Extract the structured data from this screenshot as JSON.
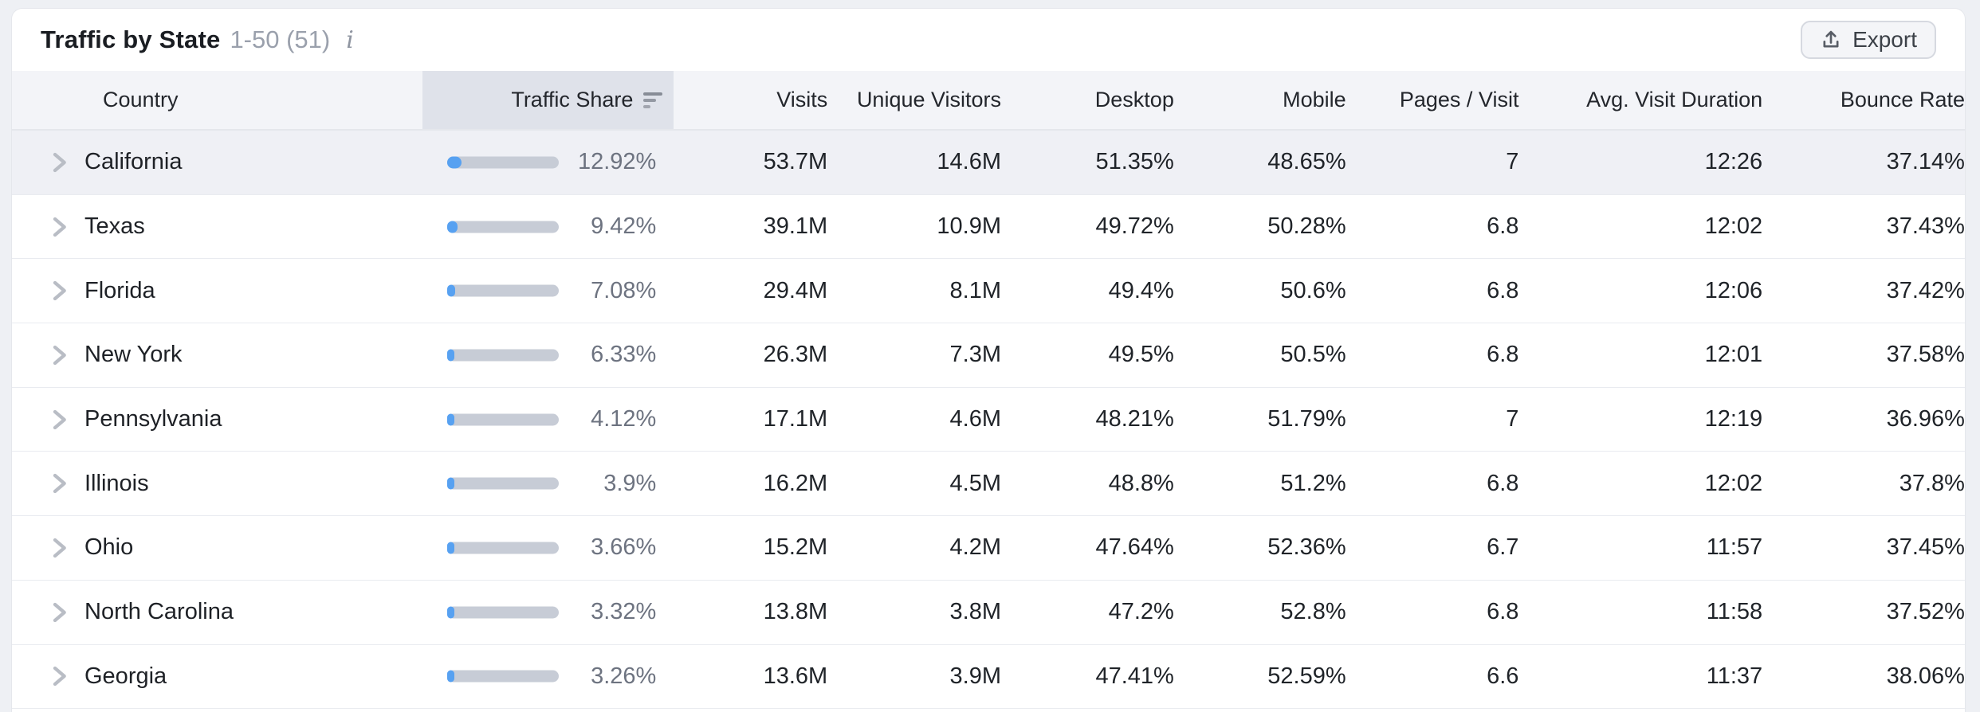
{
  "header": {
    "title": "Traffic by State",
    "range": "1-50 (51)",
    "info_glyph": "i",
    "export_label": "Export"
  },
  "icons": {
    "info": "info-icon",
    "export": "upload-icon",
    "sort": "sort-descending-icon",
    "row_expand": "chevron-right-icon"
  },
  "colors": {
    "page_bg": "#eef0f4",
    "card_bg": "#ffffff",
    "thead_bg": "#f3f4f8",
    "sorted_column_bg": "#dfe2ea",
    "row_highlight_bg": "#eff0f5",
    "bar_track": "#c7ccd6",
    "bar_fill_blue": "#57a1f1",
    "muted_text": "#9aa0ac",
    "pct_text": "#6d7380",
    "dark_text": "#1f2328"
  },
  "table": {
    "columns": [
      {
        "label": "Country",
        "align": "left",
        "sorted": false
      },
      {
        "label": "Traffic Share",
        "align": "right",
        "sorted": true
      },
      {
        "label": "Visits",
        "align": "right",
        "sorted": false
      },
      {
        "label": "Unique Visitors",
        "align": "right",
        "sorted": false
      },
      {
        "label": "Desktop",
        "align": "right",
        "sorted": false
      },
      {
        "label": "Mobile",
        "align": "right",
        "sorted": false
      },
      {
        "label": "Pages / Visit",
        "align": "right",
        "sorted": false
      },
      {
        "label": "Avg. Visit Duration",
        "align": "right",
        "sorted": false
      },
      {
        "label": "Bounce Rate",
        "align": "right",
        "sorted": false
      }
    ],
    "rows": [
      {
        "state": "California",
        "traffic_share": "12.92%",
        "share_pct": 12.92,
        "visits": "53.7M",
        "unique_visitors": "14.6M",
        "desktop": "51.35%",
        "mobile": "48.65%",
        "pages_per_visit": "7",
        "avg_visit_duration": "12:26",
        "bounce_rate": "37.14%",
        "highlighted": true
      },
      {
        "state": "Texas",
        "traffic_share": "9.42%",
        "share_pct": 9.42,
        "visits": "39.1M",
        "unique_visitors": "10.9M",
        "desktop": "49.72%",
        "mobile": "50.28%",
        "pages_per_visit": "6.8",
        "avg_visit_duration": "12:02",
        "bounce_rate": "37.43%",
        "highlighted": false
      },
      {
        "state": "Florida",
        "traffic_share": "7.08%",
        "share_pct": 7.08,
        "visits": "29.4M",
        "unique_visitors": "8.1M",
        "desktop": "49.4%",
        "mobile": "50.6%",
        "pages_per_visit": "6.8",
        "avg_visit_duration": "12:06",
        "bounce_rate": "37.42%",
        "highlighted": false
      },
      {
        "state": "New York",
        "traffic_share": "6.33%",
        "share_pct": 6.33,
        "visits": "26.3M",
        "unique_visitors": "7.3M",
        "desktop": "49.5%",
        "mobile": "50.5%",
        "pages_per_visit": "6.8",
        "avg_visit_duration": "12:01",
        "bounce_rate": "37.58%",
        "highlighted": false
      },
      {
        "state": "Pennsylvania",
        "traffic_share": "4.12%",
        "share_pct": 4.12,
        "visits": "17.1M",
        "unique_visitors": "4.6M",
        "desktop": "48.21%",
        "mobile": "51.79%",
        "pages_per_visit": "7",
        "avg_visit_duration": "12:19",
        "bounce_rate": "36.96%",
        "highlighted": false
      },
      {
        "state": "Illinois",
        "traffic_share": "3.9%",
        "share_pct": 3.9,
        "visits": "16.2M",
        "unique_visitors": "4.5M",
        "desktop": "48.8%",
        "mobile": "51.2%",
        "pages_per_visit": "6.8",
        "avg_visit_duration": "12:02",
        "bounce_rate": "37.8%",
        "highlighted": false
      },
      {
        "state": "Ohio",
        "traffic_share": "3.66%",
        "share_pct": 3.66,
        "visits": "15.2M",
        "unique_visitors": "4.2M",
        "desktop": "47.64%",
        "mobile": "52.36%",
        "pages_per_visit": "6.7",
        "avg_visit_duration": "11:57",
        "bounce_rate": "37.45%",
        "highlighted": false
      },
      {
        "state": "North Carolina",
        "traffic_share": "3.32%",
        "share_pct": 3.32,
        "visits": "13.8M",
        "unique_visitors": "3.8M",
        "desktop": "47.2%",
        "mobile": "52.8%",
        "pages_per_visit": "6.8",
        "avg_visit_duration": "11:58",
        "bounce_rate": "37.52%",
        "highlighted": false
      },
      {
        "state": "Georgia",
        "traffic_share": "3.26%",
        "share_pct": 3.26,
        "visits": "13.6M",
        "unique_visitors": "3.9M",
        "desktop": "47.41%",
        "mobile": "52.59%",
        "pages_per_visit": "6.6",
        "avg_visit_duration": "11:37",
        "bounce_rate": "38.06%",
        "highlighted": false
      }
    ]
  }
}
